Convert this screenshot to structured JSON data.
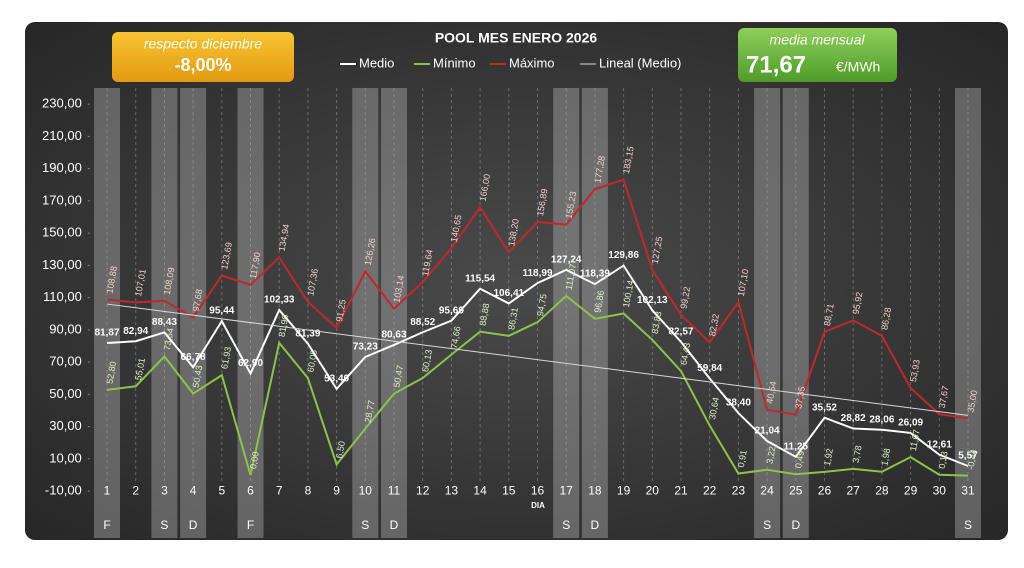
{
  "chart_data": {
    "type": "line",
    "title": "POOL  MES ENERO 2026",
    "xlabel": "DIA",
    "boxes": [
      {
        "caption": "respecto diciembre",
        "value": "-8,00%"
      },
      {
        "caption": "media mensual",
        "value": "71,67",
        "unit": "€/MWh"
      }
    ],
    "x": [
      1,
      2,
      3,
      4,
      5,
      6,
      7,
      8,
      9,
      10,
      11,
      12,
      13,
      14,
      15,
      16,
      17,
      18,
      19,
      20,
      21,
      22,
      23,
      24,
      25,
      26,
      27,
      28,
      29,
      30,
      31
    ],
    "xlim": [
      0.4,
      31.6
    ],
    "xticks": [
      1,
      2,
      3,
      4,
      5,
      6,
      7,
      8,
      9,
      10,
      11,
      12,
      13,
      14,
      15,
      16,
      17,
      18,
      19,
      20,
      21,
      22,
      23,
      24,
      25,
      26,
      27,
      28,
      29,
      30,
      31
    ],
    "ylim": [
      -10,
      240
    ],
    "yticks": [
      {
        "value": -10,
        "label": "-10,00"
      },
      {
        "value": 10,
        "label": "10,00"
      },
      {
        "value": 30,
        "label": "30,00"
      },
      {
        "value": 50,
        "label": "50,00"
      },
      {
        "value": 70,
        "label": "70,00"
      },
      {
        "value": 90,
        "label": "90,00"
      },
      {
        "value": 110,
        "label": "110,00"
      },
      {
        "value": 130,
        "label": "130,00"
      },
      {
        "value": 150,
        "label": "150,00"
      },
      {
        "value": 170,
        "label": "170,00"
      },
      {
        "value": 190,
        "label": "190,00"
      },
      {
        "value": 210,
        "label": "210,00"
      },
      {
        "value": 230,
        "label": "230,00"
      }
    ],
    "highlight_days": [
      {
        "x": 1,
        "label": "F"
      },
      {
        "x": 3,
        "label": "S"
      },
      {
        "x": 4,
        "label": "D"
      },
      {
        "x": 6,
        "label": "F"
      },
      {
        "x": 10,
        "label": "S"
      },
      {
        "x": 11,
        "label": "D"
      },
      {
        "x": 17,
        "label": "S"
      },
      {
        "x": 18,
        "label": "D"
      },
      {
        "x": 24,
        "label": "S"
      },
      {
        "x": 25,
        "label": "D"
      },
      {
        "x": 31,
        "label": "S"
      }
    ],
    "series": [
      {
        "name": "Medio",
        "color": "#ffffff",
        "values": [
          81.87,
          82.94,
          88.43,
          66.78,
          95.44,
          62.9,
          102.33,
          81.39,
          53.4,
          73.23,
          80.63,
          88.52,
          95.69,
          115.54,
          106.41,
          118.99,
          127.24,
          118.39,
          129.86,
          102.13,
          82.57,
          59.84,
          38.4,
          21.04,
          11.25,
          35.52,
          28.82,
          28.06,
          26.09,
          12.61,
          5.57
        ],
        "value_labels": [
          "81,87",
          "82,94",
          "88,43",
          "66,78",
          "95,44",
          "62,90",
          "102,33",
          "81,39",
          "53,40",
          "73,23",
          "80,63",
          "88,52",
          "95,69",
          "115,54",
          "106,41",
          "118,99",
          "127,24",
          "118,39",
          "129,86",
          "102,13",
          "82,57",
          "59,84",
          "38,40",
          "21,04",
          "11,25",
          "35,52",
          "28,82",
          "28,06",
          "26,09",
          "12,61",
          "5,57"
        ]
      },
      {
        "name": "Mínimo",
        "color": "#8fc24a",
        "values": [
          52.8,
          55.01,
          73.54,
          50.43,
          61.93,
          0.0,
          81.9,
          60.05,
          6.5,
          28.77,
          50.47,
          60.13,
          74.66,
          88.88,
          86.31,
          94.75,
          111.07,
          96.86,
          100.14,
          83.83,
          64.43,
          30.64,
          0.91,
          3.22,
          0.49,
          1.92,
          3.78,
          1.98,
          11.07,
          0.13,
          -0.44
        ],
        "value_labels": [
          "52,80",
          "55,01",
          "73,54",
          "50,43",
          "61,93",
          "0,00",
          "81,90",
          "60,05",
          "6,50",
          "28,77",
          "50,47",
          "60,13",
          "74,66",
          "88,88",
          "86,31",
          "94,75",
          "111,07",
          "96,86",
          "100,14",
          "83,83",
          "64,43",
          "30,64",
          "0,91",
          "3,22",
          "0,49",
          "1,92",
          "3,78",
          "1,98",
          "11,07",
          "0,13",
          "-0,44"
        ]
      },
      {
        "name": "Máximo",
        "color": "#c0282d",
        "values": [
          108.88,
          107.01,
          108.09,
          97.68,
          123.69,
          117.9,
          134.94,
          107.36,
          91.25,
          126.26,
          103.14,
          119.64,
          140.65,
          166.0,
          138.2,
          156.89,
          155.23,
          177.28,
          183.15,
          127.25,
          99.22,
          82.32,
          107.1,
          40.54,
          37.35,
          88.71,
          95.92,
          86.28,
          53.93,
          37.67,
          35.0
        ],
        "value_labels": [
          "108,88",
          "107,01",
          "108,09",
          "97,68",
          "123,69",
          "117,90",
          "134,94",
          "107,36",
          "91,25",
          "126,26",
          "103,14",
          "119,64",
          "140,65",
          "166,00",
          "138,20",
          "156,89",
          "155,23",
          "177,28",
          "183,15",
          "127,25",
          "99,22",
          "82,32",
          "107,10",
          "40,54",
          "37,35",
          "88,71",
          "95,92",
          "86,28",
          "53,93",
          "37,67",
          "35,00"
        ]
      },
      {
        "name": "Lineal (Medio)",
        "color": "#d9d9d9",
        "x": [
          1,
          31
        ],
        "values": [
          106,
          37
        ]
      }
    ]
  }
}
